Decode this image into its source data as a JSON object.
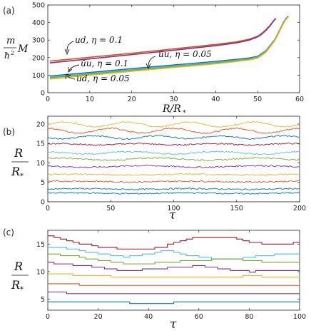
{
  "colors": {
    "blue": "#0072BD",
    "orange": "#D95319",
    "yellow": "#EDB120",
    "purple": "#7E2F8E",
    "green": "#77AC30",
    "cyan": "#4DBEEE",
    "red": "#A2142F"
  },
  "chart_data": [
    {
      "type": "line",
      "panel_label": "(a)",
      "xlabel": "R/R_*",
      "ylabel": "(m/ħ²) M",
      "xlim": [
        0,
        60
      ],
      "ylim": [
        0,
        500
      ],
      "xticks": [
        0,
        10,
        20,
        30,
        40,
        50,
        60
      ],
      "yticks": [
        0,
        100,
        200,
        300,
        400,
        500
      ],
      "annotations": [
        "ud, η = 0.1",
        "ūu, η = 0.1",
        "ūu, η = 0.05",
        "ud, η = 0.05"
      ],
      "series": [
        {
          "annotation": "ud, η = 0.1",
          "color": "#D95319",
          "x": [
            0.5,
            10,
            20,
            30,
            40,
            45,
            48,
            50,
            51,
            52,
            53,
            53.8,
            54.3
          ],
          "y": [
            180,
            202,
            225,
            250,
            275,
            290,
            305,
            322,
            338,
            360,
            385,
            410,
            425
          ]
        },
        {
          "color": "#7E2F8E",
          "x": [
            0.5,
            10,
            20,
            30,
            40,
            45,
            48,
            50,
            51,
            52,
            53,
            53.8,
            54.3
          ],
          "y": [
            170,
            193,
            217,
            242,
            268,
            284,
            300,
            318,
            334,
            356,
            382,
            408,
            423
          ]
        },
        {
          "annotation": "ūu, η = 0.1",
          "color": "#0072BD",
          "x": [
            0.5,
            10,
            20,
            30,
            40,
            45,
            48,
            50,
            52,
            54,
            55,
            56,
            56.8,
            57.3
          ],
          "y": [
            95,
            115,
            137,
            158,
            178,
            190,
            198,
            207,
            240,
            300,
            345,
            395,
            425,
            438
          ]
        },
        {
          "annotation": "ūu, η = 0.05",
          "color": "#4DBEEE",
          "x": [
            0.5,
            10,
            20,
            30,
            40,
            45,
            48,
            50,
            52,
            54,
            55,
            56,
            56.8,
            57.3
          ],
          "y": [
            90,
            110,
            132,
            153,
            173,
            185,
            193,
            203,
            237,
            298,
            343,
            393,
            423,
            436
          ]
        },
        {
          "color": "#77AC30",
          "x": [
            0.5,
            10,
            20,
            30,
            40,
            45,
            48,
            50,
            52,
            54,
            55,
            56,
            56.8,
            57.3
          ],
          "y": [
            85,
            106,
            128,
            149,
            170,
            182,
            191,
            200,
            234,
            296,
            341,
            391,
            421,
            434
          ]
        },
        {
          "annotation": "ud, η = 0.05",
          "color": "#EDB120",
          "x": [
            0.5,
            10,
            20,
            30,
            40,
            45,
            48,
            50,
            52,
            54,
            55,
            56,
            56.8,
            57.3
          ],
          "y": [
            78,
            100,
            122,
            144,
            165,
            178,
            187,
            197,
            231,
            293,
            338,
            388,
            418,
            432
          ]
        }
      ]
    },
    {
      "type": "line",
      "panel_label": "(b)",
      "xlabel": "τ",
      "ylabel": "R/R_*",
      "xlim": [
        0,
        200
      ],
      "ylim": [
        0,
        22
      ],
      "xticks": [
        0,
        50,
        100,
        150,
        200
      ],
      "yticks": [
        0,
        5,
        10,
        15,
        20
      ],
      "series": [
        {
          "color": "#EDB120",
          "mean": 19.9,
          "amplitude": 0.6,
          "period": 50,
          "phase": 0.0
        },
        {
          "color": "#D95319",
          "mean": 18.3,
          "amplitude": 0.6,
          "period": 50,
          "phase": 1.6
        },
        {
          "color": "#0072BD",
          "mean": 16.6,
          "amplitude": 0.4,
          "period": 50,
          "phase": 3.2
        },
        {
          "color": "#A2142F",
          "mean": 14.8,
          "amplitude": 0.2,
          "period": 60,
          "phase": 0.5
        },
        {
          "color": "#4DBEEE",
          "mean": 12.6,
          "amplitude": 0.3,
          "period": 70,
          "phase": 2.0
        },
        {
          "color": "#77AC30",
          "mean": 11.0,
          "amplitude": 0.3,
          "period": 80,
          "phase": 1.0
        },
        {
          "color": "#7E2F8E",
          "mean": 9.1,
          "amplitude": 0.2,
          "period": 90,
          "phase": 2.5
        },
        {
          "color": "#EDB120",
          "mean": 7.0,
          "amplitude": 0.1,
          "period": 90,
          "phase": 0.0
        },
        {
          "color": "#D95319",
          "mean": 5.2,
          "amplitude": 0.1,
          "period": 90,
          "phase": 0.0
        },
        {
          "color": "#0072BD",
          "mean": 3.3,
          "amplitude": 0.1,
          "period": 90,
          "phase": 0.0
        },
        {
          "color": "#0072BD",
          "mean": 2.2,
          "amplitude": 0.1,
          "period": 90,
          "phase": 0.0
        }
      ]
    },
    {
      "type": "line",
      "panel_label": "(c)",
      "xlabel": "τ",
      "ylabel": "R/R_*",
      "xlim": [
        0,
        100
      ],
      "ylim": [
        3,
        17.5
      ],
      "xticks": [
        0,
        20,
        40,
        60,
        80,
        100
      ],
      "yticks": [
        5,
        10,
        15
      ],
      "series": [
        {
          "color": "#A2142F",
          "x": [
            0,
            3,
            6,
            10,
            20,
            30,
            40,
            46,
            52,
            58,
            70,
            76,
            80,
            90,
            100
          ],
          "y": [
            16.5,
            16.2,
            15.6,
            15.2,
            14.5,
            14.0,
            14.0,
            14.6,
            15.6,
            16.3,
            16.3,
            15.8,
            15.2,
            15.0,
            15.2
          ]
        },
        {
          "color": "#4DBEEE",
          "x": [
            0,
            10,
            20,
            30,
            40,
            46,
            55,
            65,
            75,
            85,
            100
          ],
          "y": [
            14.5,
            14.0,
            13.2,
            12.6,
            13.2,
            14.0,
            13.0,
            12.3,
            12.3,
            13.0,
            13.2
          ]
        },
        {
          "color": "#77AC30",
          "x": [
            0,
            10,
            20,
            30,
            40,
            50,
            60,
            70,
            80,
            90,
            100
          ],
          "y": [
            13.2,
            12.8,
            12.0,
            11.5,
            11.5,
            11.8,
            12.0,
            12.3,
            12.0,
            11.6,
            11.6
          ]
        },
        {
          "color": "#7E2F8E",
          "x": [
            0,
            10,
            20,
            30,
            40,
            50,
            60,
            70,
            80,
            90,
            100
          ],
          "y": [
            11.6,
            11.2,
            10.7,
            10.2,
            10.4,
            10.8,
            11.0,
            10.4,
            10.0,
            10.2,
            10.3
          ]
        },
        {
          "color": "#EDB120",
          "x": [
            0,
            20,
            40,
            60,
            80,
            100
          ],
          "y": [
            9.6,
            9.2,
            8.9,
            9.0,
            9.2,
            9.0
          ]
        },
        {
          "color": "#D95319",
          "x": [
            0,
            20,
            40,
            60,
            80,
            100
          ],
          "y": [
            7.8,
            7.5,
            7.4,
            7.5,
            7.6,
            7.4
          ]
        },
        {
          "color": "#7E2F8E",
          "x": [
            0,
            20,
            40,
            60,
            80,
            100
          ],
          "y": [
            6.2,
            6.0,
            5.9,
            6.0,
            6.1,
            6.0
          ]
        },
        {
          "color": "#0072BD",
          "x": [
            0,
            20,
            40,
            60,
            80,
            100
          ],
          "y": [
            4.5,
            4.4,
            4.3,
            4.4,
            4.5,
            4.4
          ]
        }
      ]
    }
  ]
}
